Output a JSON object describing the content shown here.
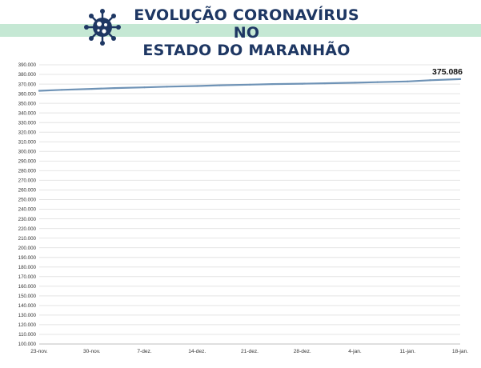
{
  "header": {
    "title_line1": "EVOLUÇÃO CORONAVÍRUS NO",
    "title_line2": "ESTADO DO MARANHÃO",
    "icon": "virus-icon",
    "colors": {
      "title": "#1e3763",
      "band": "#c5e8d4"
    }
  },
  "chart_data": {
    "type": "line",
    "title": "",
    "xlabel": "",
    "ylabel": "",
    "ylim": [
      100000,
      390000
    ],
    "y_ticks": [
      390000,
      380000,
      370000,
      360000,
      350000,
      340000,
      330000,
      320000,
      310000,
      300000,
      290000,
      280000,
      270000,
      260000,
      250000,
      240000,
      230000,
      220000,
      210000,
      200000,
      190000,
      180000,
      170000,
      160000,
      150000,
      140000,
      130000,
      120000,
      110000,
      100000
    ],
    "y_tick_labels": [
      "390.000",
      "380.000",
      "370.000",
      "360.000",
      "350.000",
      "340.000",
      "330.000",
      "320.000",
      "310.000",
      "300.000",
      "290.000",
      "280.000",
      "270.000",
      "260.000",
      "250.000",
      "240.000",
      "230.000",
      "220.000",
      "210.000",
      "200.000",
      "190.000",
      "180.000",
      "170.000",
      "160.000",
      "150.000",
      "140.000",
      "130.000",
      "120.000",
      "110.000",
      "100.000"
    ],
    "x_tick_labels": [
      "23-nov.",
      "30-nov.",
      "7-dez.",
      "14-dez.",
      "21-dez.",
      "28-dez.",
      "4-jan.",
      "11-jan.",
      "18-jan."
    ],
    "grid": true,
    "line_color": "#6f93b6",
    "series": [
      {
        "x": [
          "2020-11-23",
          "2020-11-26",
          "2020-11-30",
          "2020-12-03",
          "2020-12-07",
          "2020-12-10",
          "2020-12-14",
          "2020-12-17",
          "2020-12-21",
          "2020-12-24",
          "2020-12-28",
          "2020-12-31",
          "2021-01-04",
          "2021-01-07",
          "2021-01-11",
          "2021-01-14",
          "2021-01-18"
        ],
        "values": [
          363000,
          364000,
          365000,
          365800,
          366600,
          367300,
          368000,
          368700,
          369400,
          370000,
          370400,
          370800,
          371400,
          372000,
          372700,
          374000,
          375086
        ]
      }
    ],
    "annotations": [
      {
        "x": "2021-01-18",
        "value": 375086,
        "label": "375.086"
      }
    ]
  }
}
